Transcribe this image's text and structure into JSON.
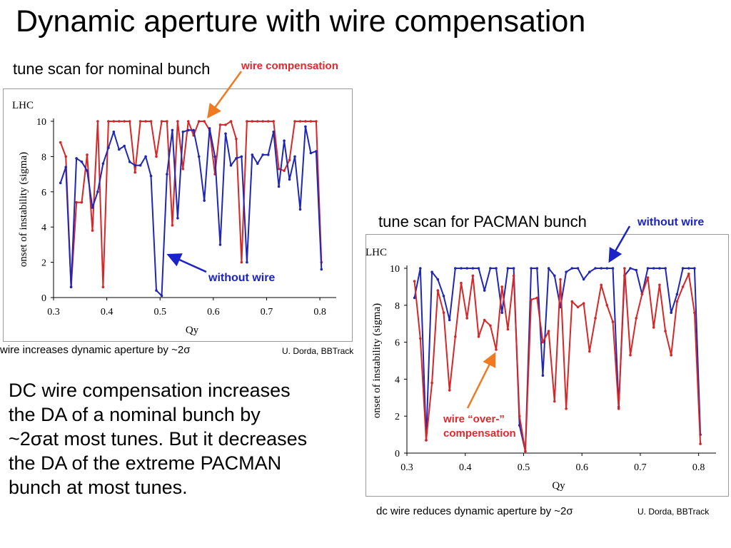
{
  "slide": {
    "title": "Dynamic aperture with wire compensation",
    "body_lines": [
      "DC wire compensation increases",
      "the DA of a nominal bunch  by",
      "~2σat most tunes. But it decreases",
      "the DA of the extreme PACMAN",
      "bunch at most tunes."
    ]
  },
  "colors": {
    "red_series": "#d62728",
    "blue_series": "#1f27b4",
    "arrow_orange": "#f07a22",
    "annotation_red": "#e0282d",
    "annotation_blue": "#1a22c8"
  },
  "left_panel": {
    "caption": "tune scan for nominal bunch",
    "corner_label": "LHC",
    "arrow_note": "wire compensation",
    "series_note": "without wire",
    "footnote": "wire increases dynamic aperture by ~2σ",
    "credit": "U. Dorda, BBTrack"
  },
  "right_panel": {
    "caption": "tune scan for PACMAN bunch",
    "corner_label": "LHC",
    "arrow_note": "without wire",
    "series_note_lines": [
      "wire “over-”",
      "compensation"
    ],
    "footnote": "dc wire reduces dynamic aperture by ~2σ",
    "credit": "U. Dorda, BBTrack"
  },
  "chart_data": [
    {
      "type": "line",
      "xlabel": "Qy",
      "ylabel": "onset of  instability (sigma)",
      "xlim": [
        0.3,
        0.82
      ],
      "ylim": [
        0,
        10
      ],
      "xticks": [
        "0.3",
        "0.4",
        "0.5",
        "0.6",
        "0.7",
        "0.8"
      ],
      "yticks": [
        "0",
        "2",
        "4",
        "6",
        "8",
        "10"
      ],
      "grid": false,
      "series": [
        {
          "color": "red",
          "x": [
            0.313,
            0.323,
            0.333,
            0.343,
            0.353,
            0.363,
            0.373,
            0.383,
            0.393,
            0.403,
            0.413,
            0.423,
            0.433,
            0.443,
            0.453,
            0.463,
            0.473,
            0.483,
            0.493,
            0.503,
            0.513,
            0.523,
            0.533,
            0.543,
            0.553,
            0.563,
            0.573,
            0.583,
            0.593,
            0.603,
            0.613,
            0.623,
            0.633,
            0.643,
            0.653,
            0.663,
            0.673,
            0.683,
            0.693,
            0.703,
            0.713,
            0.723,
            0.733,
            0.743,
            0.753,
            0.763,
            0.773,
            0.783,
            0.793,
            0.803
          ],
          "y": [
            8.8,
            8.0,
            0.6,
            5.4,
            5.4,
            8.1,
            3.8,
            10,
            0.6,
            10,
            10,
            10,
            10,
            10,
            7.1,
            10,
            10,
            10,
            8.0,
            10,
            10,
            4.1,
            10,
            7.3,
            10,
            9.2,
            10,
            10,
            9.5,
            7.0,
            9.8,
            9.8,
            10,
            9.0,
            2.0,
            10,
            10,
            10,
            10,
            10,
            10,
            7.3,
            7.2,
            7.8,
            10,
            10,
            10,
            10,
            10,
            2.0
          ]
        },
        {
          "color": "blue",
          "x": [
            0.313,
            0.323,
            0.333,
            0.343,
            0.353,
            0.363,
            0.373,
            0.383,
            0.393,
            0.403,
            0.413,
            0.423,
            0.433,
            0.443,
            0.453,
            0.463,
            0.473,
            0.483,
            0.493,
            0.503,
            0.513,
            0.523,
            0.533,
            0.543,
            0.553,
            0.563,
            0.573,
            0.583,
            0.593,
            0.603,
            0.613,
            0.623,
            0.633,
            0.643,
            0.653,
            0.663,
            0.673,
            0.683,
            0.693,
            0.703,
            0.713,
            0.723,
            0.733,
            0.743,
            0.753,
            0.763,
            0.773,
            0.783,
            0.793,
            0.803
          ],
          "y": [
            6.5,
            7.4,
            0.6,
            7.9,
            7.7,
            7.2,
            5.1,
            6.0,
            7.6,
            8.5,
            9.4,
            8.4,
            8.6,
            7.7,
            7.5,
            7.5,
            8.0,
            6.9,
            0.4,
            0.1,
            7.0,
            9.5,
            4.5,
            9.4,
            9.5,
            9.5,
            8.0,
            5.5,
            9.6,
            8.0,
            3.0,
            9.3,
            7.5,
            7.9,
            8.0,
            2.0,
            8.1,
            7.6,
            8.1,
            8.1,
            9.4,
            6.3,
            8.9,
            6.7,
            8.0,
            5.0,
            9.7,
            8.2,
            8.3,
            1.6
          ]
        }
      ]
    },
    {
      "type": "line",
      "xlabel": "Qy",
      "ylabel": "onset of  instability (sigma)",
      "xlim": [
        0.3,
        0.82
      ],
      "ylim": [
        0,
        10
      ],
      "xticks": [
        "0.3",
        "0.4",
        "0.5",
        "0.6",
        "0.7",
        "0.8"
      ],
      "yticks": [
        "0",
        "2",
        "4",
        "6",
        "8",
        "10"
      ],
      "grid": false,
      "series": [
        {
          "color": "blue",
          "x": [
            0.313,
            0.323,
            0.333,
            0.343,
            0.353,
            0.363,
            0.373,
            0.383,
            0.393,
            0.403,
            0.413,
            0.423,
            0.433,
            0.443,
            0.453,
            0.463,
            0.473,
            0.483,
            0.493,
            0.503,
            0.513,
            0.523,
            0.533,
            0.543,
            0.553,
            0.563,
            0.573,
            0.583,
            0.593,
            0.603,
            0.613,
            0.623,
            0.633,
            0.643,
            0.653,
            0.663,
            0.673,
            0.683,
            0.693,
            0.703,
            0.713,
            0.723,
            0.733,
            0.743,
            0.753,
            0.763,
            0.773,
            0.783,
            0.793,
            0.803
          ],
          "y": [
            8.4,
            10,
            0.7,
            9.8,
            9.4,
            8.5,
            7.2,
            10,
            10,
            10,
            10,
            10,
            8.8,
            10,
            10,
            7.6,
            10,
            10,
            1.5,
            0.1,
            10,
            10,
            4.2,
            10,
            9.6,
            7.9,
            9.8,
            10,
            10,
            9.4,
            9.8,
            10,
            10,
            10,
            10,
            2.5,
            9.6,
            10,
            9.9,
            8.6,
            10,
            10,
            10,
            10,
            7.6,
            8.6,
            10,
            10,
            10,
            1.0
          ]
        },
        {
          "color": "red",
          "x": [
            0.313,
            0.323,
            0.333,
            0.343,
            0.353,
            0.363,
            0.373,
            0.383,
            0.393,
            0.403,
            0.413,
            0.423,
            0.433,
            0.443,
            0.453,
            0.463,
            0.473,
            0.483,
            0.493,
            0.503,
            0.513,
            0.523,
            0.533,
            0.543,
            0.553,
            0.563,
            0.573,
            0.583,
            0.593,
            0.603,
            0.613,
            0.623,
            0.633,
            0.643,
            0.653,
            0.663,
            0.673,
            0.683,
            0.693,
            0.703,
            0.713,
            0.723,
            0.733,
            0.743,
            0.753,
            0.763,
            0.773,
            0.783,
            0.793,
            0.803
          ],
          "y": [
            9.3,
            6.2,
            0.7,
            3.8,
            8.8,
            7.6,
            3.4,
            6.3,
            9.2,
            7.3,
            9.6,
            6.3,
            7.2,
            6.9,
            5.6,
            9.0,
            6.7,
            9.6,
            2.0,
            0.1,
            8.3,
            8.4,
            6.0,
            6.6,
            2.8,
            9.4,
            2.4,
            8.2,
            7.9,
            8.1,
            5.5,
            7.3,
            9.1,
            8.0,
            7.1,
            2.4,
            10,
            5.3,
            7.3,
            8.6,
            9.5,
            6.8,
            9.1,
            6.6,
            5.3,
            8.2,
            9.0,
            9.7,
            7.6,
            0.5
          ]
        }
      ]
    }
  ]
}
